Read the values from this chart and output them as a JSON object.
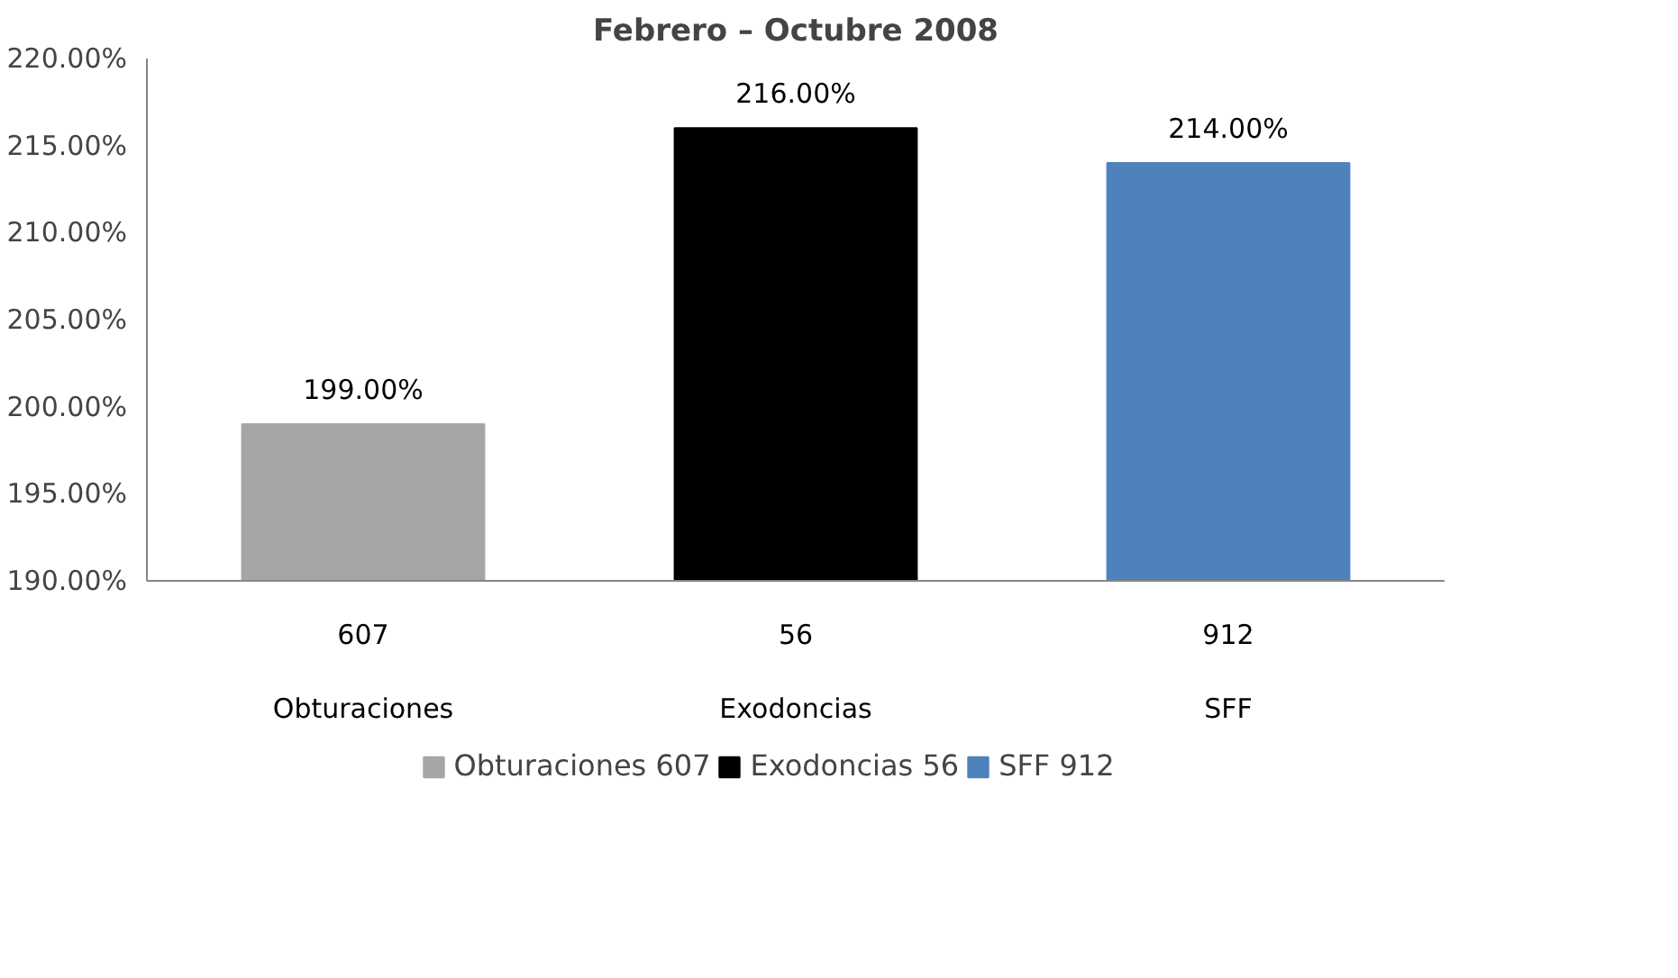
{
  "chart_data": {
    "type": "bar",
    "title": "Febrero – Octubre 2008",
    "categories": [
      "607\nObturaciones",
      "56\nExodoncias",
      "912\nSFF"
    ],
    "series": [
      {
        "name": "Obturaciones 607",
        "color": "#a6a6a6",
        "values": [
          199,
          null,
          null
        ]
      },
      {
        "name": "Exodoncias 56",
        "color": "#000000",
        "values": [
          null,
          216,
          null
        ]
      },
      {
        "name": "SFF 912",
        "color": "#4f81bd",
        "values": [
          null,
          null,
          214
        ]
      }
    ],
    "value_labels": [
      "199.00%",
      "216.00%",
      "214.00%"
    ],
    "ylim": [
      190,
      220
    ],
    "yticks": [
      {
        "value": 190,
        "label": "190.00%"
      },
      {
        "value": 195,
        "label": "195.00%"
      },
      {
        "value": 200,
        "label": "200.00%"
      },
      {
        "value": 205,
        "label": "205.00%"
      },
      {
        "value": 210,
        "label": "210.00%"
      },
      {
        "value": 215,
        "label": "215.00%"
      },
      {
        "value": 220,
        "label": "220.00%"
      }
    ],
    "grid": false,
    "legend": "bottom"
  }
}
